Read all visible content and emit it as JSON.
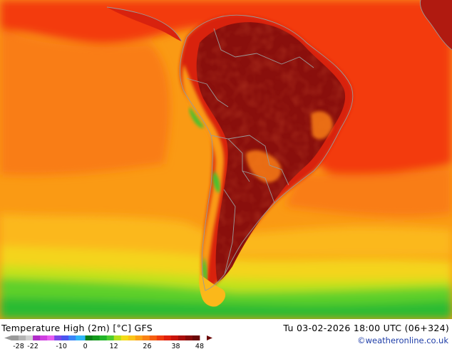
{
  "map": {
    "region": "South America",
    "variable": "Temperature High (2m)",
    "colors": {
      "ocean_hot": "#f33b10",
      "ocean_warm": "#f97d12",
      "ocean_orange": "#fa9a14",
      "ocean_light": "#fbb81a",
      "ocean_yellow": "#f4d41c",
      "ocean_lime": "#c5e21a",
      "ocean_green": "#5fd02a",
      "ocean_dgreen": "#2bbb33",
      "land_dark": "#8a0f0c",
      "land_mid": "#b01a10",
      "land_red": "#d8220e",
      "andes_green": "#43c22e",
      "borders": "#9a9a9a"
    }
  },
  "footer": {
    "title": "Temperature High (2m) [°C] GFS",
    "datetime": "Tu 03-02-2026 18:00 UTC (06+324)",
    "credit": "©weatheronline.co.uk"
  },
  "legend": {
    "unit": "°C",
    "tick_labels": [
      "-28",
      "-22",
      "-10",
      "0",
      "12",
      "26",
      "38",
      "48"
    ],
    "tick_values": [
      -28,
      -22,
      -10,
      0,
      12,
      26,
      38,
      48
    ],
    "range": [
      -31,
      51
    ],
    "bins": [
      {
        "from": -31,
        "to": -28,
        "color": "#9a9a9a"
      },
      {
        "from": -28,
        "to": -25,
        "color": "#b4b4b4"
      },
      {
        "from": -25,
        "to": -22,
        "color": "#d0d0d0"
      },
      {
        "from": -22,
        "to": -19,
        "color": "#b02cc8"
      },
      {
        "from": -19,
        "to": -16,
        "color": "#cf3fe0"
      },
      {
        "from": -16,
        "to": -13,
        "color": "#e65cf0"
      },
      {
        "from": -13,
        "to": -10,
        "color": "#7a46e8"
      },
      {
        "from": -10,
        "to": -7,
        "color": "#4a55f0"
      },
      {
        "from": -7,
        "to": -4,
        "color": "#3a85f8"
      },
      {
        "from": -4,
        "to": 0,
        "color": "#2fb6f6"
      },
      {
        "from": 0,
        "to": 3,
        "color": "#0a7f18"
      },
      {
        "from": 3,
        "to": 6,
        "color": "#129a1c"
      },
      {
        "from": 6,
        "to": 9,
        "color": "#22b52a"
      },
      {
        "from": 9,
        "to": 12,
        "color": "#4ccc30"
      },
      {
        "from": 12,
        "to": 15,
        "color": "#b4e01c"
      },
      {
        "from": 15,
        "to": 18,
        "color": "#f4dc18"
      },
      {
        "from": 18,
        "to": 21,
        "color": "#fbc418"
      },
      {
        "from": 21,
        "to": 24,
        "color": "#fba216"
      },
      {
        "from": 24,
        "to": 27,
        "color": "#f98214"
      },
      {
        "from": 27,
        "to": 30,
        "color": "#f55e10"
      },
      {
        "from": 30,
        "to": 33,
        "color": "#ef3a0e"
      },
      {
        "from": 33,
        "to": 36,
        "color": "#e0200c"
      },
      {
        "from": 36,
        "to": 39,
        "color": "#c8140c"
      },
      {
        "from": 39,
        "to": 42,
        "color": "#a80e0c"
      },
      {
        "from": 42,
        "to": 45,
        "color": "#880a0a"
      },
      {
        "from": 45,
        "to": 48,
        "color": "#6a0808"
      }
    ]
  }
}
